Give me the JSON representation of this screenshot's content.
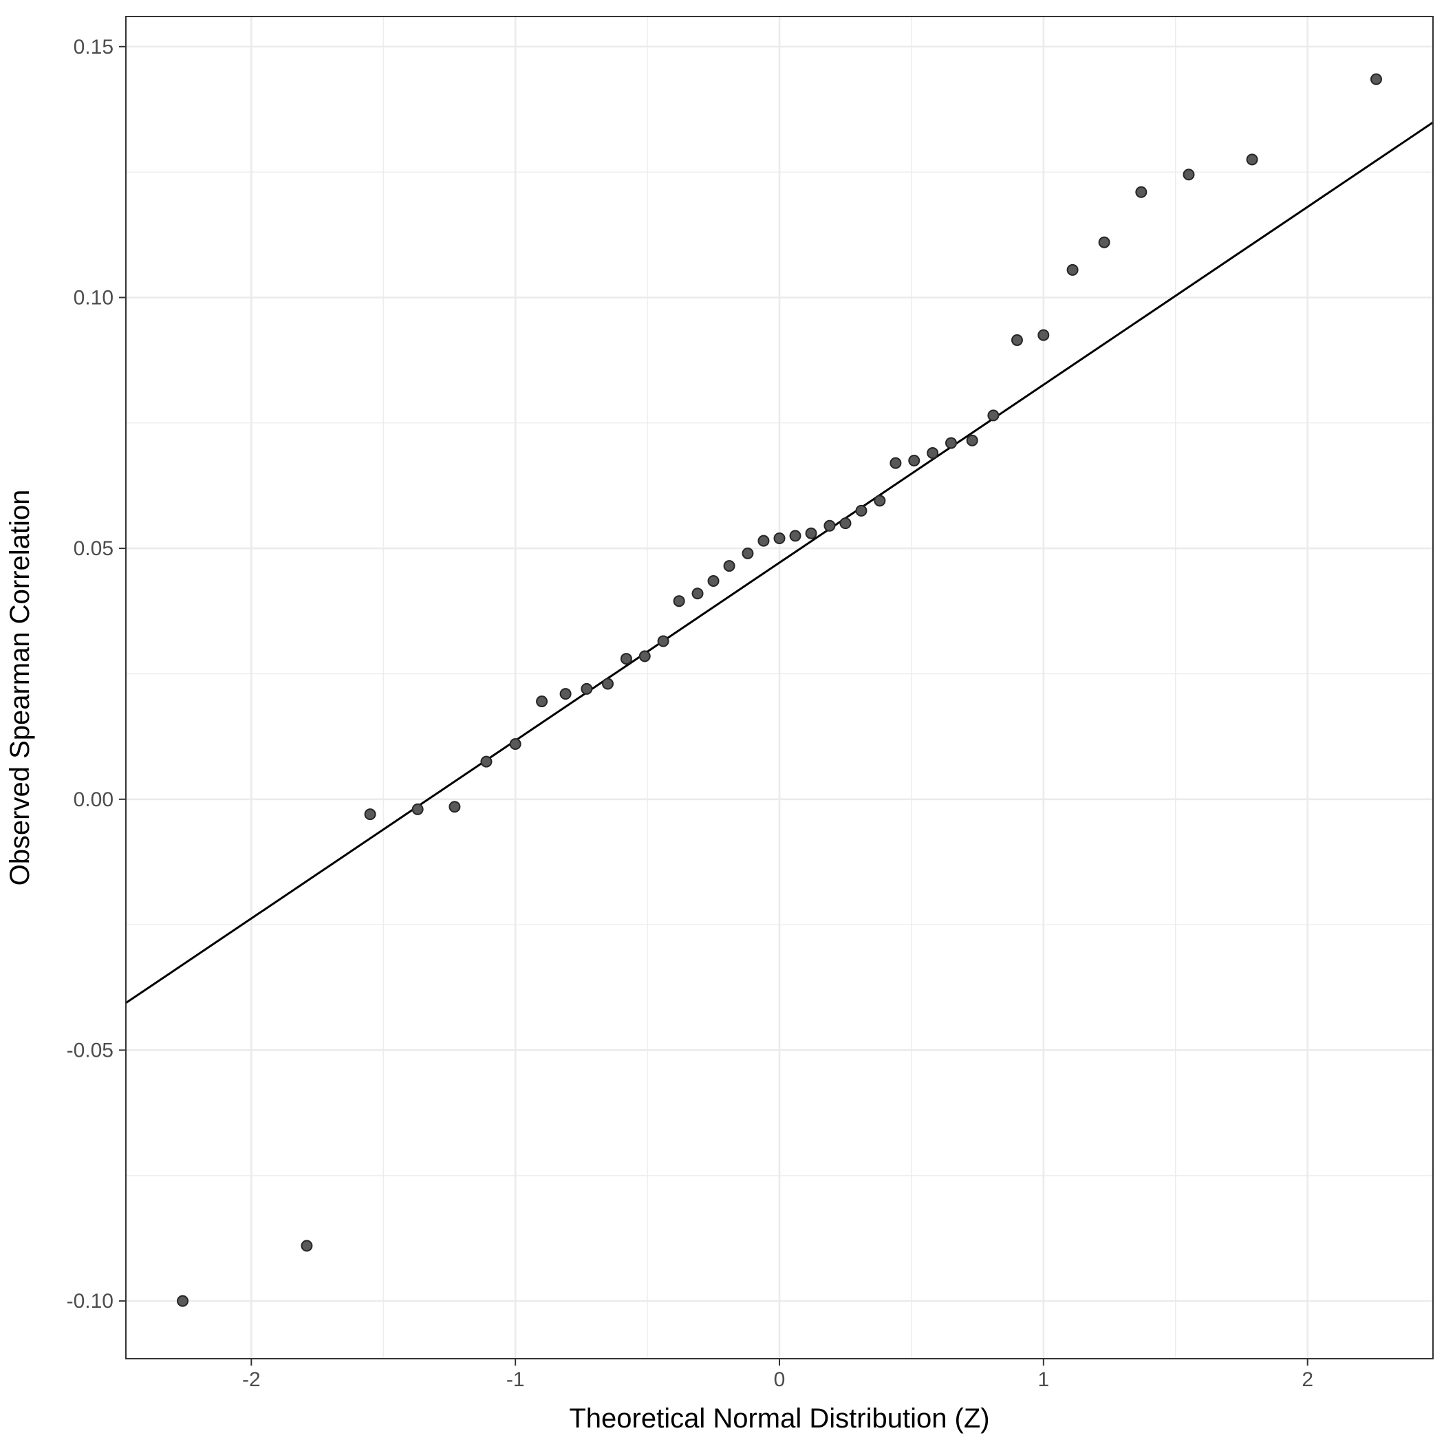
{
  "chart_data": {
    "type": "scatter",
    "title": "",
    "xlabel": "Theoretical Normal Distribution (Z)",
    "ylabel": "Observed Spearman Correlation",
    "xlim": [
      -2.475,
      2.475
    ],
    "ylim": [
      -0.1115,
      0.156
    ],
    "x_ticks": [
      -2,
      -1,
      0,
      1,
      2
    ],
    "x_tick_labels": [
      "-2",
      "-1",
      "0",
      "1",
      "2"
    ],
    "y_ticks": [
      -0.1,
      -0.05,
      0.0,
      0.05,
      0.1,
      0.15
    ],
    "y_tick_labels": [
      "-0.10",
      "-0.05",
      "0.00",
      "0.05",
      "0.10",
      "0.15"
    ],
    "x_minor_ticks": [
      -1.5,
      -0.5,
      0.5,
      1.5
    ],
    "y_minor_ticks": [
      -0.075,
      -0.025,
      0.025,
      0.075,
      0.125
    ],
    "grid": true,
    "legend": "none",
    "point_color": "#595959",
    "point_stroke": "#262626",
    "line_color": "#000000",
    "grid_color": "#ebebeb",
    "reference_line": {
      "x": [
        -2.475,
        2.475
      ],
      "y": [
        -0.0406,
        0.1349
      ]
    },
    "series": [
      {
        "x": [
          -2.26,
          -1.79,
          -1.55,
          -1.37,
          -1.23,
          -1.11,
          -1.0,
          -0.9,
          -0.81,
          -0.73,
          -0.65,
          -0.58,
          -0.51,
          -0.44,
          -0.38,
          -0.31,
          -0.25,
          -0.19,
          -0.12,
          -0.06,
          0.0,
          0.06,
          0.12,
          0.19,
          0.25,
          0.31,
          0.38,
          0.44,
          0.51,
          0.58,
          0.65,
          0.73,
          0.81,
          0.9,
          1.0,
          1.11,
          1.23,
          1.37,
          1.55,
          1.79,
          2.26
        ],
        "y": [
          -0.1,
          -0.089,
          -0.003,
          -0.002,
          -0.0015,
          0.0075,
          0.011,
          0.0195,
          0.021,
          0.022,
          0.023,
          0.028,
          0.0285,
          0.0315,
          0.0395,
          0.041,
          0.0435,
          0.0465,
          0.049,
          0.0515,
          0.052,
          0.0525,
          0.053,
          0.0545,
          0.055,
          0.0575,
          0.0595,
          0.067,
          0.0675,
          0.069,
          0.071,
          0.0715,
          0.0765,
          0.0915,
          0.0925,
          0.1055,
          0.111,
          0.121,
          0.1245,
          0.1275,
          0.1435
        ]
      }
    ]
  }
}
